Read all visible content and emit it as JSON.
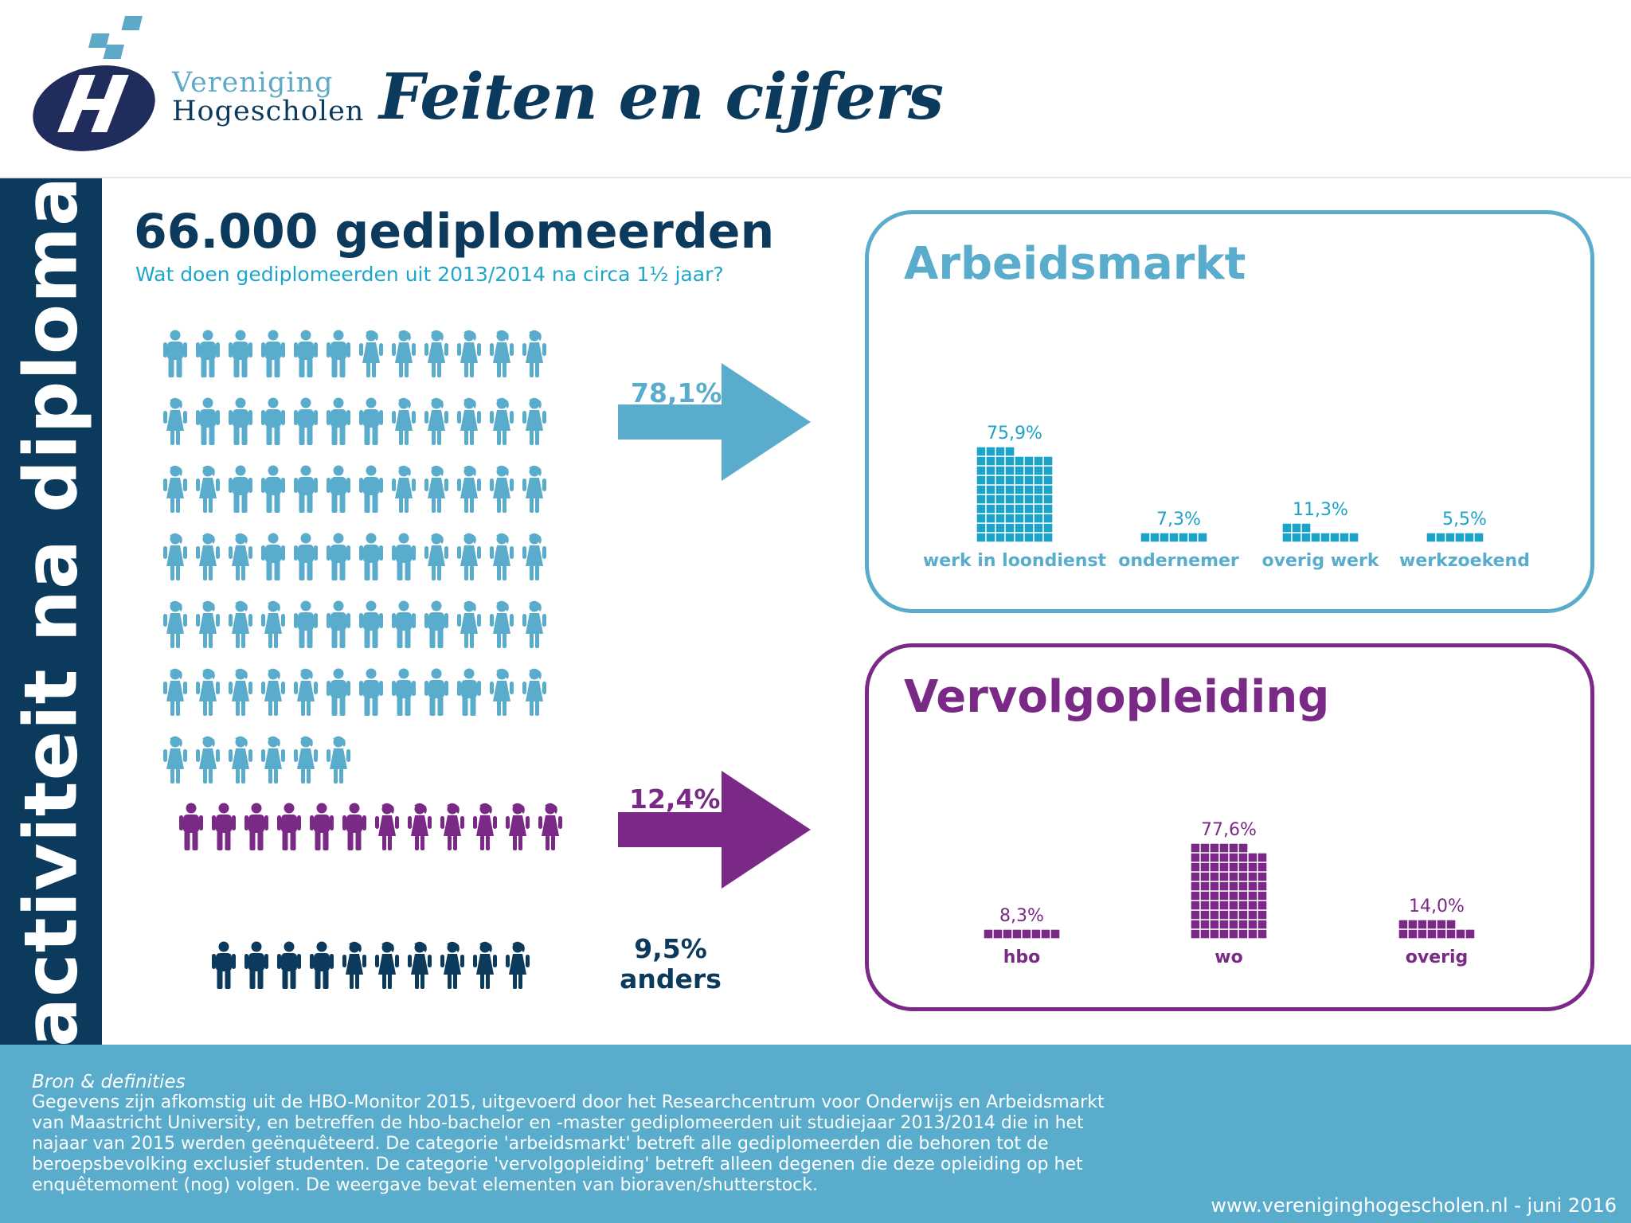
{
  "header": {
    "logo_line_1": "Vereniging",
    "logo_line_2": "Hogescholen",
    "title": "Feiten en cijfers"
  },
  "sidebar": {
    "label": "activiteit na diploma"
  },
  "headline": {
    "title": "66.000 gediplomeerden",
    "subtitle": "Wat doen gediplomeerden uit 2013/2014 na circa 1½ jaar?"
  },
  "groups": {
    "arbeidsmarkt": {
      "percentage": "78,1%"
    },
    "vervolgopleiding": {
      "percentage": "12,4%"
    },
    "anders": {
      "percentage": "9,5%",
      "label": "anders"
    }
  },
  "colors": {
    "navy": "#0b3a5c",
    "light_blue": "#5aaccc",
    "bar_blue": "#1ea3c8",
    "purple": "#7a2a86"
  },
  "chart_data": [
    {
      "type": "bar",
      "title": "Arbeidsmarkt",
      "categories": [
        "werk in loondienst",
        "ondernemer",
        "overig werk",
        "werkzoekend"
      ],
      "values": [
        75.9,
        7.3,
        11.3,
        5.5
      ],
      "value_labels": [
        "75,9%",
        "7,3%",
        "11,3%",
        "5,5%"
      ],
      "unit": "%"
    },
    {
      "type": "bar",
      "title": "Vervolgopleiding",
      "categories": [
        "hbo",
        "wo",
        "overig"
      ],
      "values": [
        8.3,
        77.6,
        14.0
      ],
      "value_labels": [
        "8,3%",
        "77,6%",
        "14,0%"
      ],
      "unit": "%"
    }
  ],
  "footer": {
    "heading": "Bron & definities",
    "body": "Gegevens zijn afkomstig uit de HBO-Monitor 2015, uitgevoerd door het Researchcentrum voor Onderwijs en Arbeidsmarkt van Maastricht University, en betreffen de hbo-bachelor en -master gediplomeerden uit studiejaar 2013/2014 die in het najaar van 2015 werden geënquêteerd. De categorie 'arbeidsmarkt' betreft alle gediplomeerden die behoren tot de beroepsbevolking exclusief studenten. De categorie 'vervolgopleiding' betreft alleen degenen die deze opleiding op het enquêtemoment (nog) volgen. De weergave bevat elementen van bioraven/shutterstock.",
    "url": "www.verenigingho­gescholen.nl - juni 2016"
  }
}
